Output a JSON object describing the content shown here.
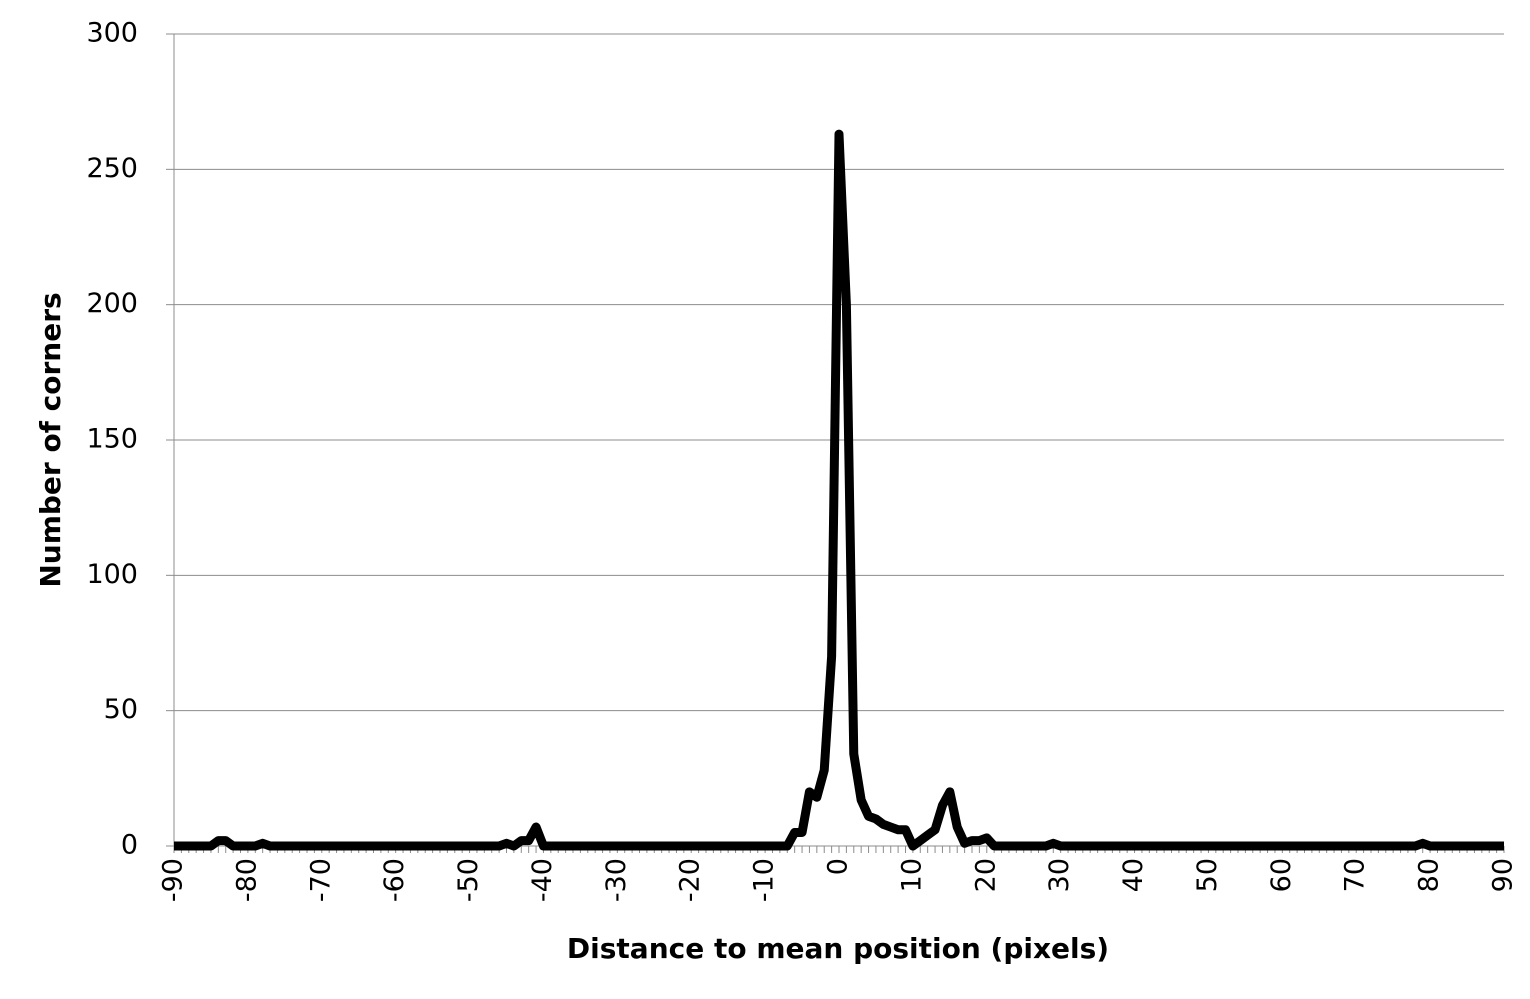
{
  "chart_data": {
    "type": "line",
    "x_label": "Distance to mean position (pixels)",
    "y_label": "Number of corners",
    "x": [
      -90,
      -89,
      -88,
      -87,
      -86,
      -85,
      -84,
      -83,
      -82,
      -81,
      -80,
      -79,
      -78,
      -77,
      -76,
      -75,
      -74,
      -73,
      -72,
      -71,
      -70,
      -69,
      -68,
      -67,
      -66,
      -65,
      -64,
      -63,
      -62,
      -61,
      -60,
      -59,
      -58,
      -57,
      -56,
      -55,
      -54,
      -53,
      -52,
      -51,
      -50,
      -49,
      -48,
      -47,
      -46,
      -45,
      -44,
      -43,
      -42,
      -41,
      -40,
      -39,
      -38,
      -37,
      -36,
      -35,
      -34,
      -33,
      -32,
      -31,
      -30,
      -29,
      -28,
      -27,
      -26,
      -25,
      -24,
      -23,
      -22,
      -21,
      -20,
      -19,
      -18,
      -17,
      -16,
      -15,
      -14,
      -13,
      -12,
      -11,
      -10,
      -9,
      -8,
      -7,
      -6,
      -5,
      -4,
      -3,
      -2,
      -1,
      0,
      1,
      2,
      3,
      4,
      5,
      6,
      7,
      8,
      9,
      10,
      11,
      12,
      13,
      14,
      15,
      16,
      17,
      18,
      19,
      20,
      21,
      22,
      23,
      24,
      25,
      26,
      27,
      28,
      29,
      30,
      31,
      32,
      33,
      34,
      35,
      36,
      37,
      38,
      39,
      40,
      41,
      42,
      43,
      44,
      45,
      46,
      47,
      48,
      49,
      50,
      51,
      52,
      53,
      54,
      55,
      56,
      57,
      58,
      59,
      60,
      61,
      62,
      63,
      64,
      65,
      66,
      67,
      68,
      69,
      70,
      71,
      72,
      73,
      74,
      75,
      76,
      77,
      78,
      79,
      80,
      81,
      82,
      83,
      84,
      85,
      86,
      87,
      88,
      89,
      90
    ],
    "series": [
      {
        "color": "#000000",
        "values": [
          0,
          0,
          0,
          0,
          0,
          0,
          2,
          2,
          0,
          0,
          0,
          0,
          1,
          0,
          0,
          0,
          0,
          0,
          0,
          0,
          0,
          0,
          0,
          0,
          0,
          0,
          0,
          0,
          0,
          0,
          0,
          0,
          0,
          0,
          0,
          0,
          0,
          0,
          0,
          0,
          0,
          0,
          0,
          0,
          0,
          1,
          0,
          2,
          2,
          7,
          0,
          0,
          0,
          0,
          0,
          0,
          0,
          0,
          0,
          0,
          0,
          0,
          0,
          0,
          0,
          0,
          0,
          0,
          0,
          0,
          0,
          0,
          0,
          0,
          0,
          0,
          0,
          0,
          0,
          0,
          0,
          0,
          0,
          0,
          5,
          5,
          20,
          18,
          28,
          70,
          263,
          200,
          34,
          17,
          11,
          10,
          8,
          7,
          6,
          6,
          0,
          2,
          4,
          6,
          15,
          20,
          7,
          1,
          2,
          2,
          3,
          0,
          0,
          0,
          0,
          0,
          0,
          0,
          0,
          1,
          0,
          0,
          0,
          0,
          0,
          0,
          0,
          0,
          0,
          0,
          0,
          0,
          0,
          0,
          0,
          0,
          0,
          0,
          0,
          0,
          0,
          0,
          0,
          0,
          0,
          0,
          0,
          0,
          0,
          0,
          0,
          0,
          0,
          0,
          0,
          0,
          0,
          0,
          0,
          0,
          0,
          0,
          0,
          0,
          0,
          0,
          0,
          0,
          0,
          1,
          0,
          0,
          0,
          0,
          0,
          0,
          0,
          0,
          0,
          0,
          0
        ]
      }
    ],
    "xlim": [
      -90,
      90
    ],
    "xticks": [
      -90,
      -80,
      -70,
      -60,
      -50,
      -40,
      -30,
      -20,
      -10,
      0,
      10,
      20,
      30,
      40,
      50,
      60,
      70,
      80,
      90
    ],
    "ylim": [
      0,
      300
    ],
    "yticks": [
      0,
      50,
      100,
      150,
      200,
      250,
      300
    ],
    "grid": true
  }
}
